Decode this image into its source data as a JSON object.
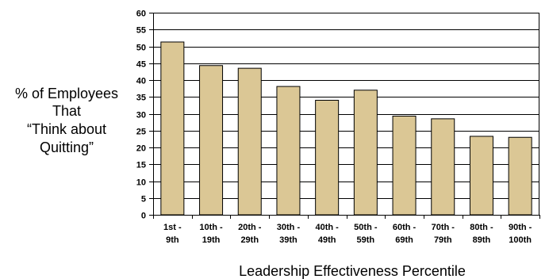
{
  "chart_data": {
    "type": "bar",
    "categories": [
      [
        "1st -",
        "9th"
      ],
      [
        "10th -",
        "19th"
      ],
      [
        "20th -",
        "29th"
      ],
      [
        "30th -",
        "39th"
      ],
      [
        "40th -",
        "49th"
      ],
      [
        "50th -",
        "59th"
      ],
      [
        "60th -",
        "69th"
      ],
      [
        "70th -",
        "79th"
      ],
      [
        "80th -",
        "89th"
      ],
      [
        "90th -",
        "100th"
      ]
    ],
    "values": [
      51.3,
      44.3,
      43.5,
      38.1,
      34.0,
      37.0,
      29.3,
      28.5,
      23.3,
      23.0
    ],
    "title": "",
    "xlabel": "Leadership Effectiveness Percentile",
    "ylabel": [
      "% of Employees",
      "That",
      "“Think about",
      "Quitting”"
    ],
    "ylim": [
      0,
      60
    ],
    "yticks": [
      0,
      5,
      10,
      15,
      20,
      25,
      30,
      35,
      40,
      45,
      50,
      55,
      60
    ],
    "grid": true,
    "legend": "none",
    "colors": {
      "bar_fill": "#dbc795",
      "bar_stroke": "#000000",
      "grid": "#000000",
      "axis": "#000000"
    }
  }
}
